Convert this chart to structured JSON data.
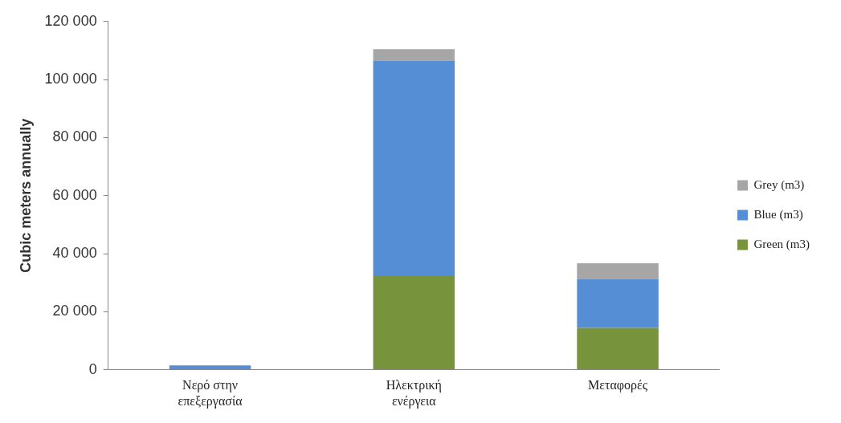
{
  "chart_data": {
    "type": "bar",
    "stacked": true,
    "ylabel": "Cubic meters annually",
    "categories": [
      "Νερό στην επεξεργασία",
      "Ηλεκτρική ενέργεια",
      "Μεταφορές"
    ],
    "series": [
      {
        "name": "Green (m3)",
        "color": "#77933c",
        "values": [
          0,
          32500,
          14400
        ]
      },
      {
        "name": "Blue (m3)",
        "color": "#558ed5",
        "values": [
          1500,
          74000,
          16900
        ]
      },
      {
        "name": "Grey (m3)",
        "color": "#a6a6a6",
        "values": [
          0,
          4000,
          5400
        ]
      }
    ],
    "ylim": [
      0,
      120000
    ],
    "yticks": [
      {
        "value": 0,
        "label": "0"
      },
      {
        "value": 20000,
        "label": "20 000"
      },
      {
        "value": 40000,
        "label": "40 000"
      },
      {
        "value": 60000,
        "label": "60 000"
      },
      {
        "value": 80000,
        "label": "80 000"
      },
      {
        "value": 100000,
        "label": "100 000"
      },
      {
        "value": 120000,
        "label": "120 000"
      }
    ],
    "grid": false,
    "legend": "right"
  }
}
